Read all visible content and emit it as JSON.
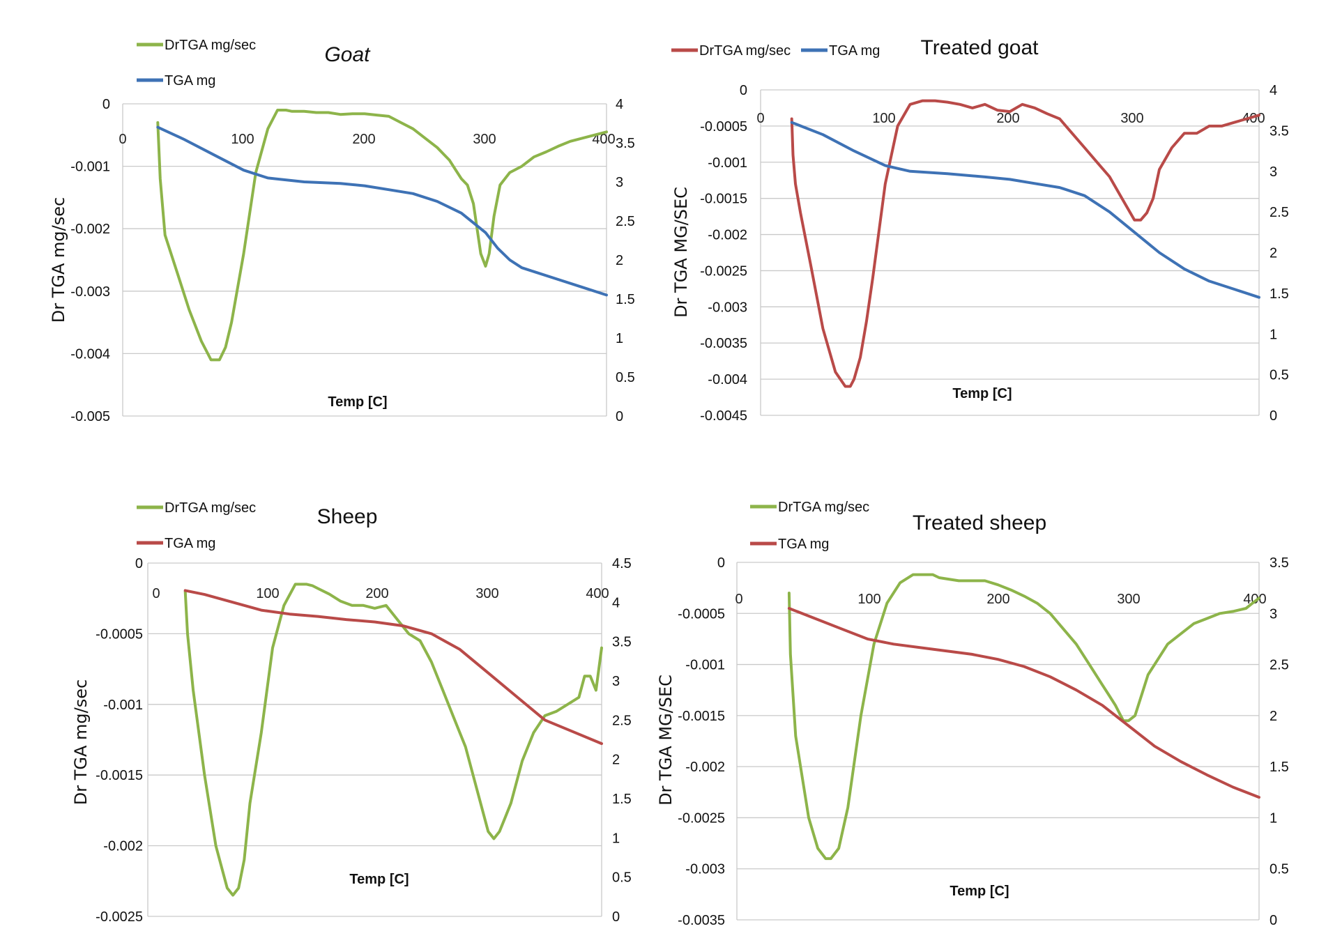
{
  "chart_data": [
    {
      "type": "line",
      "title": "Goat",
      "title_style": "italic",
      "xlabel": "Temp [C]",
      "ylabel": "Dr TGA mg/sec",
      "y2label": "",
      "xlim": [
        0,
        400
      ],
      "ylim": [
        -0.005,
        0
      ],
      "y2lim": [
        0,
        4
      ],
      "xticks": [
        "0",
        "100",
        "200",
        "300",
        "400"
      ],
      "yticks": [
        "0",
        "-0.001",
        "-0.002",
        "-0.003",
        "-0.004",
        "-0.005"
      ],
      "y2ticks": [
        "4",
        "3.5",
        "3",
        "2.5",
        "2",
        "1.5",
        "1",
        "0.5",
        "0"
      ],
      "grid": true,
      "legend_position": "top-left",
      "series": [
        {
          "name": "DrTGA mg/sec",
          "axis": "left",
          "color": "#8db44a",
          "x": [
            29,
            31,
            35,
            45,
            55,
            65,
            73,
            80,
            85,
            90,
            100,
            110,
            120,
            128,
            135,
            140,
            145,
            150,
            160,
            170,
            180,
            190,
            200,
            210,
            220,
            230,
            240,
            250,
            260,
            270,
            275,
            280,
            285,
            290,
            296,
            300,
            303,
            307,
            312,
            320,
            330,
            340,
            350,
            360,
            370,
            380,
            390,
            400
          ],
          "y": [
            -0.0003,
            -0.0012,
            -0.0021,
            -0.0027,
            -0.0033,
            -0.0038,
            -0.0041,
            -0.0041,
            -0.0039,
            -0.0035,
            -0.0024,
            -0.0011,
            -0.0004,
            -0.0001,
            -0.0001,
            -0.00012,
            -0.00012,
            -0.00012,
            -0.00014,
            -0.00014,
            -0.00017,
            -0.00016,
            -0.00016,
            -0.00018,
            -0.0002,
            -0.0003,
            -0.0004,
            -0.00055,
            -0.0007,
            -0.0009,
            -0.00105,
            -0.0012,
            -0.0013,
            -0.0016,
            -0.0024,
            -0.0026,
            -0.0024,
            -0.0018,
            -0.0013,
            -0.0011,
            -0.001,
            -0.00085,
            -0.00077,
            -0.00068,
            -0.0006,
            -0.00055,
            -0.0005,
            -0.00045
          ]
        },
        {
          "name": "TGA mg",
          "axis": "right",
          "color": "#3e72b5",
          "x": [
            29,
            50,
            75,
            100,
            120,
            150,
            180,
            200,
            220,
            240,
            260,
            280,
            300,
            310,
            320,
            330,
            340,
            360,
            380,
            400
          ],
          "y": [
            3.7,
            3.55,
            3.35,
            3.15,
            3.05,
            3.0,
            2.98,
            2.95,
            2.9,
            2.85,
            2.75,
            2.6,
            2.35,
            2.15,
            2.0,
            1.9,
            1.85,
            1.75,
            1.65,
            1.55
          ]
        }
      ]
    },
    {
      "type": "line",
      "title": "Treated goat",
      "title_style": "normal",
      "xlabel": "Temp [C]",
      "ylabel": "Dr TGA MG/SEC",
      "y2label": "",
      "xlim": [
        0,
        400
      ],
      "ylim": [
        -0.0045,
        0
      ],
      "y2lim": [
        0,
        4
      ],
      "xticks": [
        "0",
        "100",
        "200",
        "300",
        "400"
      ],
      "yticks": [
        "0",
        "-0.0005",
        "-0.001",
        "-0.0015",
        "-0.002",
        "-0.0025",
        "-0.003",
        "-0.0035",
        "-0.004",
        "-0.0045"
      ],
      "y2ticks": [
        "4",
        "3.5",
        "3",
        "2.5",
        "2",
        "1.5",
        "1",
        "0.5",
        "0"
      ],
      "grid": true,
      "legend_position": "top",
      "series": [
        {
          "name": "DrTGA mg/sec",
          "axis": "left",
          "color": "#b94a48",
          "x": [
            25,
            26,
            28,
            32,
            40,
            50,
            60,
            68,
            72,
            75,
            80,
            85,
            90,
            100,
            110,
            120,
            130,
            140,
            145,
            150,
            160,
            170,
            180,
            190,
            200,
            210,
            220,
            230,
            240,
            250,
            260,
            270,
            280,
            290,
            300,
            305,
            310,
            315,
            320,
            330,
            340,
            350,
            360,
            370,
            380,
            390,
            400
          ],
          "y": [
            -0.0004,
            -0.0009,
            -0.0013,
            -0.0017,
            -0.0024,
            -0.0033,
            -0.0039,
            -0.0041,
            -0.0041,
            -0.004,
            -0.0037,
            -0.0032,
            -0.0026,
            -0.0013,
            -0.0005,
            -0.0002,
            -0.00015,
            -0.00015,
            -0.00016,
            -0.00017,
            -0.0002,
            -0.00025,
            -0.0002,
            -0.00028,
            -0.0003,
            -0.0002,
            -0.00025,
            -0.00033,
            -0.0004,
            -0.0006,
            -0.0008,
            -0.001,
            -0.0012,
            -0.0015,
            -0.0018,
            -0.0018,
            -0.0017,
            -0.0015,
            -0.0011,
            -0.0008,
            -0.0006,
            -0.0006,
            -0.0005,
            -0.0005,
            -0.00045,
            -0.0004,
            -0.00035
          ]
        },
        {
          "name": "TGA mg",
          "axis": "right",
          "color": "#3e72b5",
          "x": [
            25,
            50,
            75,
            100,
            120,
            150,
            180,
            200,
            220,
            240,
            260,
            280,
            300,
            320,
            340,
            360,
            380,
            400
          ],
          "y": [
            3.6,
            3.45,
            3.25,
            3.07,
            3.0,
            2.97,
            2.93,
            2.9,
            2.85,
            2.8,
            2.7,
            2.5,
            2.25,
            2.0,
            1.8,
            1.65,
            1.55,
            1.45
          ]
        }
      ]
    },
    {
      "type": "line",
      "title": "Sheep",
      "title_style": "normal",
      "xlabel": "Temp [C]",
      "ylabel": "Dr TGA mg/sec",
      "y2label": "",
      "xlim": [
        0,
        400
      ],
      "ylim": [
        -0.0025,
        0
      ],
      "y2lim": [
        0,
        4.5
      ],
      "xticks": [
        "0",
        "100",
        "200",
        "300",
        "400"
      ],
      "yticks": [
        "0",
        "-0.0005",
        "-0.001",
        "-0.0015",
        "-0.002",
        "-0.0025"
      ],
      "y2ticks": [
        "4.5",
        "4",
        "3.5",
        "3",
        "2.5",
        "2",
        "1.5",
        "1",
        "0.5",
        "0"
      ],
      "grid": true,
      "legend_position": "top-left",
      "series": [
        {
          "name": "DrTGA mg/sec",
          "axis": "left",
          "color": "#8db44a",
          "x": [
            33,
            35,
            40,
            50,
            60,
            70,
            75,
            80,
            85,
            90,
            100,
            110,
            120,
            130,
            140,
            145,
            150,
            160,
            170,
            180,
            190,
            200,
            210,
            220,
            230,
            240,
            250,
            260,
            270,
            280,
            290,
            300,
            305,
            310,
            315,
            320,
            330,
            340,
            350,
            360,
            370,
            380,
            385,
            390,
            395,
            400
          ],
          "y": [
            -0.0002,
            -0.0005,
            -0.0009,
            -0.0015,
            -0.002,
            -0.0023,
            -0.00235,
            -0.0023,
            -0.0021,
            -0.0017,
            -0.0012,
            -0.0006,
            -0.0003,
            -0.00015,
            -0.00015,
            -0.00016,
            -0.00018,
            -0.00022,
            -0.00027,
            -0.0003,
            -0.0003,
            -0.00032,
            -0.0003,
            -0.0004,
            -0.0005,
            -0.00055,
            -0.0007,
            -0.0009,
            -0.0011,
            -0.0013,
            -0.0016,
            -0.0019,
            -0.00195,
            -0.0019,
            -0.0018,
            -0.0017,
            -0.0014,
            -0.0012,
            -0.00108,
            -0.00105,
            -0.001,
            -0.00095,
            -0.0008,
            -0.0008,
            -0.0009,
            -0.0006
          ]
        },
        {
          "name": "TGA mg",
          "axis": "right",
          "color": "#b94a48",
          "x": [
            33,
            50,
            75,
            100,
            125,
            150,
            175,
            200,
            225,
            250,
            275,
            300,
            325,
            350,
            375,
            400
          ],
          "y": [
            4.15,
            4.1,
            4.0,
            3.9,
            3.85,
            3.82,
            3.78,
            3.75,
            3.7,
            3.6,
            3.4,
            3.1,
            2.8,
            2.5,
            2.35,
            2.2
          ]
        }
      ]
    },
    {
      "type": "line",
      "title": "Treated sheep",
      "title_style": "normal",
      "xlabel": "Temp [C]",
      "ylabel": "Dr TGA MG/SEC",
      "y2label": "",
      "xlim": [
        0,
        400
      ],
      "ylim": [
        -0.0035,
        0
      ],
      "y2lim": [
        0,
        3.5
      ],
      "xticks": [
        "0",
        "100",
        "200",
        "300",
        "400"
      ],
      "yticks": [
        "0",
        "-0.0005",
        "-0.001",
        "-0.0015",
        "-0.002",
        "-0.0025",
        "-0.003",
        "-0.0035"
      ],
      "y2ticks": [
        "3.5",
        "3",
        "2.5",
        "2",
        "1.5",
        "1",
        "0.5",
        "0"
      ],
      "grid": true,
      "legend_position": "top-left",
      "series": [
        {
          "name": "DrTGA mg/sec",
          "axis": "left",
          "color": "#8db44a",
          "x": [
            40,
            41,
            45,
            55,
            62,
            68,
            72,
            78,
            85,
            95,
            105,
            115,
            125,
            135,
            145,
            150,
            155,
            170,
            190,
            200,
            210,
            220,
            230,
            240,
            250,
            260,
            270,
            280,
            285,
            290,
            296,
            300,
            305,
            310,
            315,
            320,
            330,
            340,
            350,
            360,
            370,
            380,
            390,
            395,
            400
          ],
          "y": [
            -0.0003,
            -0.0009,
            -0.0017,
            -0.0025,
            -0.0028,
            -0.0029,
            -0.0029,
            -0.0028,
            -0.0024,
            -0.0015,
            -0.0008,
            -0.0004,
            -0.0002,
            -0.00012,
            -0.00012,
            -0.00012,
            -0.00015,
            -0.00018,
            -0.00018,
            -0.00022,
            -0.00027,
            -0.00033,
            -0.0004,
            -0.0005,
            -0.00065,
            -0.0008,
            -0.001,
            -0.0012,
            -0.0013,
            -0.0014,
            -0.00155,
            -0.00155,
            -0.0015,
            -0.0013,
            -0.0011,
            -0.001,
            -0.0008,
            -0.0007,
            -0.0006,
            -0.00055,
            -0.0005,
            -0.00048,
            -0.00045,
            -0.0004,
            -0.00035
          ]
        },
        {
          "name": "TGA mg",
          "axis": "right",
          "color": "#b94a48",
          "x": [
            40,
            60,
            80,
            100,
            120,
            150,
            180,
            200,
            220,
            240,
            260,
            280,
            300,
            320,
            340,
            360,
            380,
            400
          ],
          "y": [
            3.05,
            2.95,
            2.85,
            2.75,
            2.7,
            2.65,
            2.6,
            2.55,
            2.48,
            2.38,
            2.25,
            2.1,
            1.9,
            1.7,
            1.55,
            1.42,
            1.3,
            1.2
          ]
        }
      ]
    }
  ]
}
